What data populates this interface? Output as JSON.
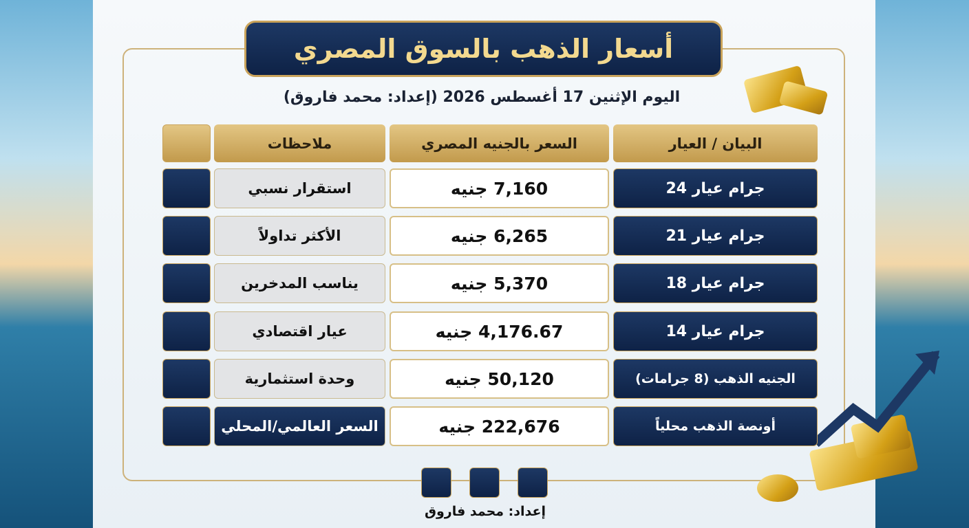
{
  "title": "أسعار الذهب بالسوق المصري",
  "subtitle": "اليوم الإثنين 17 أغسطس 2026 (إعداد: محمد فاروق)",
  "table": {
    "headers": [
      "البيان / العيار",
      "السعر بالجنيه المصري",
      "ملاحظات"
    ],
    "rows": [
      [
        "جرام عيار 24",
        "7,160 جنيه",
        "استقرار نسبي"
      ],
      [
        "جرام عيار 21",
        "6,265 جنيه",
        "الأكثر تداولاً"
      ],
      [
        "جرام عيار 18",
        "5,370 جنيه",
        "يناسب المدخرين"
      ],
      [
        "جرام عيار 14",
        "4,176.67 جنيه",
        "عيار اقتصادي"
      ],
      [
        "الجنيه الذهب (8 جرامات)",
        "50,120 جنيه",
        "وحدة استثمارية"
      ],
      [
        "أونصة الذهب محلياً",
        "222,676 جنيه",
        "السعر العالمي/المحلي"
      ]
    ]
  },
  "footer": {
    "credit": "إعداد: محمد فاروق"
  }
}
